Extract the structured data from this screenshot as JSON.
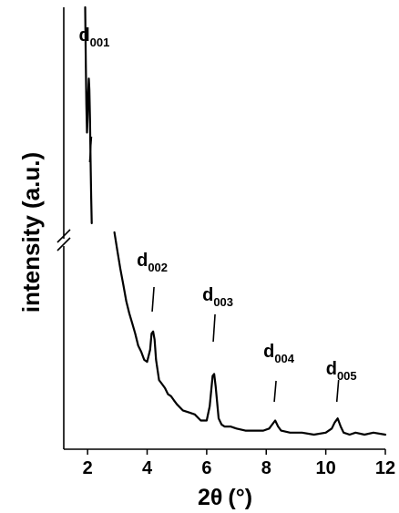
{
  "chart_data": {
    "type": "line",
    "xlabel_main": "2θ",
    "xlabel_unit": "(°)",
    "ylabel": "intensity (a.u.)",
    "xlim": [
      1.2,
      12
    ],
    "xticks": [
      2,
      4,
      6,
      8,
      10,
      12
    ],
    "xtick_labels": [
      "2",
      "4",
      "6",
      "8",
      "10",
      "12"
    ],
    "y_axis_break": true,
    "y_tick_labels": false,
    "grid": false,
    "peaks": [
      {
        "name": "d",
        "sub": "001",
        "x": 2.1
      },
      {
        "name": "d",
        "sub": "002",
        "x": 4.2
      },
      {
        "name": "d",
        "sub": "003",
        "x": 6.25
      },
      {
        "name": "d",
        "sub": "004",
        "x": 8.3
      },
      {
        "name": "d",
        "sub": "005",
        "x": 10.4
      }
    ],
    "segment_upper": {
      "x": [
        1.92,
        1.94,
        1.96,
        1.98,
        2.0,
        2.02,
        2.04,
        2.06,
        2.08,
        2.1,
        2.12,
        2.14
      ],
      "y": [
        1.0,
        0.74,
        0.55,
        0.42,
        0.48,
        0.6,
        0.67,
        0.62,
        0.48,
        0.3,
        0.12,
        0.0
      ]
    },
    "segment_lower": {
      "x": [
        2.9,
        3.0,
        3.1,
        3.2,
        3.3,
        3.4,
        3.5,
        3.6,
        3.7,
        3.8,
        3.9,
        4.0,
        4.1,
        4.15,
        4.2,
        4.25,
        4.3,
        4.4,
        4.5,
        4.6,
        4.7,
        4.8,
        4.9,
        5.0,
        5.2,
        5.4,
        5.6,
        5.8,
        6.0,
        6.1,
        6.2,
        6.25,
        6.3,
        6.4,
        6.5,
        6.6,
        6.8,
        7.0,
        7.3,
        7.6,
        7.9,
        8.1,
        8.2,
        8.3,
        8.4,
        8.5,
        8.8,
        9.2,
        9.6,
        10.0,
        10.2,
        10.3,
        10.4,
        10.5,
        10.6,
        10.8,
        11.0,
        11.3,
        11.6,
        12.0
      ],
      "y": [
        1.0,
        0.91,
        0.82,
        0.74,
        0.66,
        0.6,
        0.55,
        0.5,
        0.44,
        0.41,
        0.37,
        0.36,
        0.42,
        0.5,
        0.51,
        0.47,
        0.37,
        0.27,
        0.25,
        0.23,
        0.2,
        0.19,
        0.17,
        0.15,
        0.12,
        0.11,
        0.1,
        0.07,
        0.07,
        0.14,
        0.29,
        0.3,
        0.24,
        0.08,
        0.05,
        0.04,
        0.04,
        0.03,
        0.02,
        0.02,
        0.02,
        0.03,
        0.05,
        0.07,
        0.04,
        0.02,
        0.01,
        0.01,
        0.0,
        0.01,
        0.03,
        0.06,
        0.08,
        0.04,
        0.01,
        0.0,
        0.01,
        0.0,
        0.01,
        0.0
      ]
    }
  }
}
